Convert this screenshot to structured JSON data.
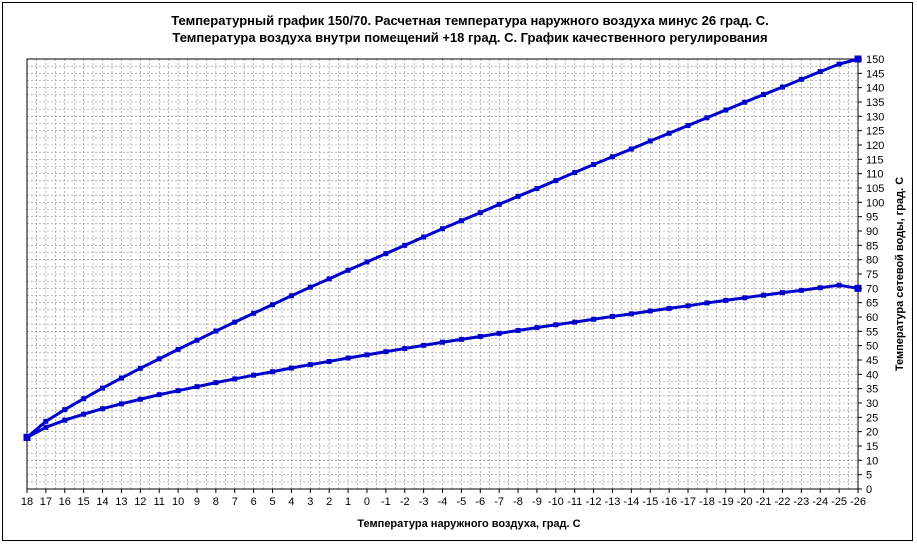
{
  "chart_data": {
    "type": "line",
    "title_line1": "Температурный график 150/70. Расчетная температура наружного воздуха минус 26 град. С.",
    "title_line2": "Температура воздуха внутри помещений +18 град. С. График качественного регулирования",
    "xlabel": "Температура наружного воздуха, град. С",
    "ylabel": "Температура сетевой воды, град. С",
    "x": [
      18,
      17,
      16,
      15,
      14,
      13,
      12,
      11,
      10,
      9,
      8,
      7,
      6,
      5,
      4,
      3,
      2,
      1,
      0,
      -1,
      -2,
      -3,
      -4,
      -5,
      -6,
      -7,
      -8,
      -9,
      -10,
      -11,
      -12,
      -13,
      -14,
      -15,
      -16,
      -17,
      -18,
      -19,
      -20,
      -21,
      -22,
      -23,
      -24,
      -25,
      -26
    ],
    "x_tick_labels": [
      "18",
      "17",
      "16",
      "15",
      "14",
      "13",
      "12",
      "11",
      "10",
      "9",
      "8",
      "7",
      "6",
      "5",
      "4",
      "3",
      "2",
      "1",
      "0",
      "-1",
      "-2",
      "-3",
      "-4",
      "-5",
      "-6",
      "-7",
      "-8",
      "-9",
      "-10",
      "-11",
      "-12",
      "-13",
      "-14",
      "-15",
      "-16",
      "-17",
      "-18",
      "-19",
      "-20",
      "-21",
      "-22",
      "-23",
      "-24",
      "-25",
      "-26"
    ],
    "y_ticks": [
      0,
      5,
      10,
      15,
      20,
      25,
      30,
      35,
      40,
      45,
      50,
      55,
      60,
      65,
      70,
      75,
      80,
      85,
      90,
      95,
      100,
      105,
      110,
      115,
      120,
      125,
      130,
      135,
      140,
      145,
      150
    ],
    "ylim": [
      0,
      150
    ],
    "y_axis_side": "right",
    "grid": true,
    "series": [
      {
        "color": "#0000cc",
        "values": [
          18,
          23.6,
          27.7,
          31.5,
          35.2,
          38.7,
          42.1,
          45.4,
          48.7,
          51.9,
          55.1,
          58.2,
          61.3,
          64.3,
          67.4,
          70.4,
          73.3,
          76.3,
          79.2,
          82.1,
          85.0,
          87.9,
          90.8,
          93.6,
          96.4,
          99.3,
          102.1,
          104.8,
          107.6,
          110.4,
          113.2,
          115.9,
          118.6,
          121.4,
          124.1,
          126.8,
          129.5,
          132.2,
          134.9,
          137.6,
          140.2,
          142.9,
          145.6,
          148.2,
          150
        ]
      },
      {
        "color": "#0000cc",
        "values": [
          18,
          21.5,
          24.0,
          26.1,
          28.0,
          29.7,
          31.3,
          32.9,
          34.3,
          35.7,
          37.1,
          38.4,
          39.7,
          40.9,
          42.2,
          43.4,
          44.5,
          45.7,
          46.8,
          47.9,
          49.0,
          50.1,
          51.2,
          52.2,
          53.2,
          54.3,
          55.3,
          56.3,
          57.3,
          58.2,
          59.2,
          60.2,
          61.1,
          62.1,
          63.0,
          63.9,
          64.9,
          65.8,
          66.7,
          67.6,
          68.5,
          69.3,
          70.2,
          71.1,
          70
        ]
      }
    ]
  }
}
